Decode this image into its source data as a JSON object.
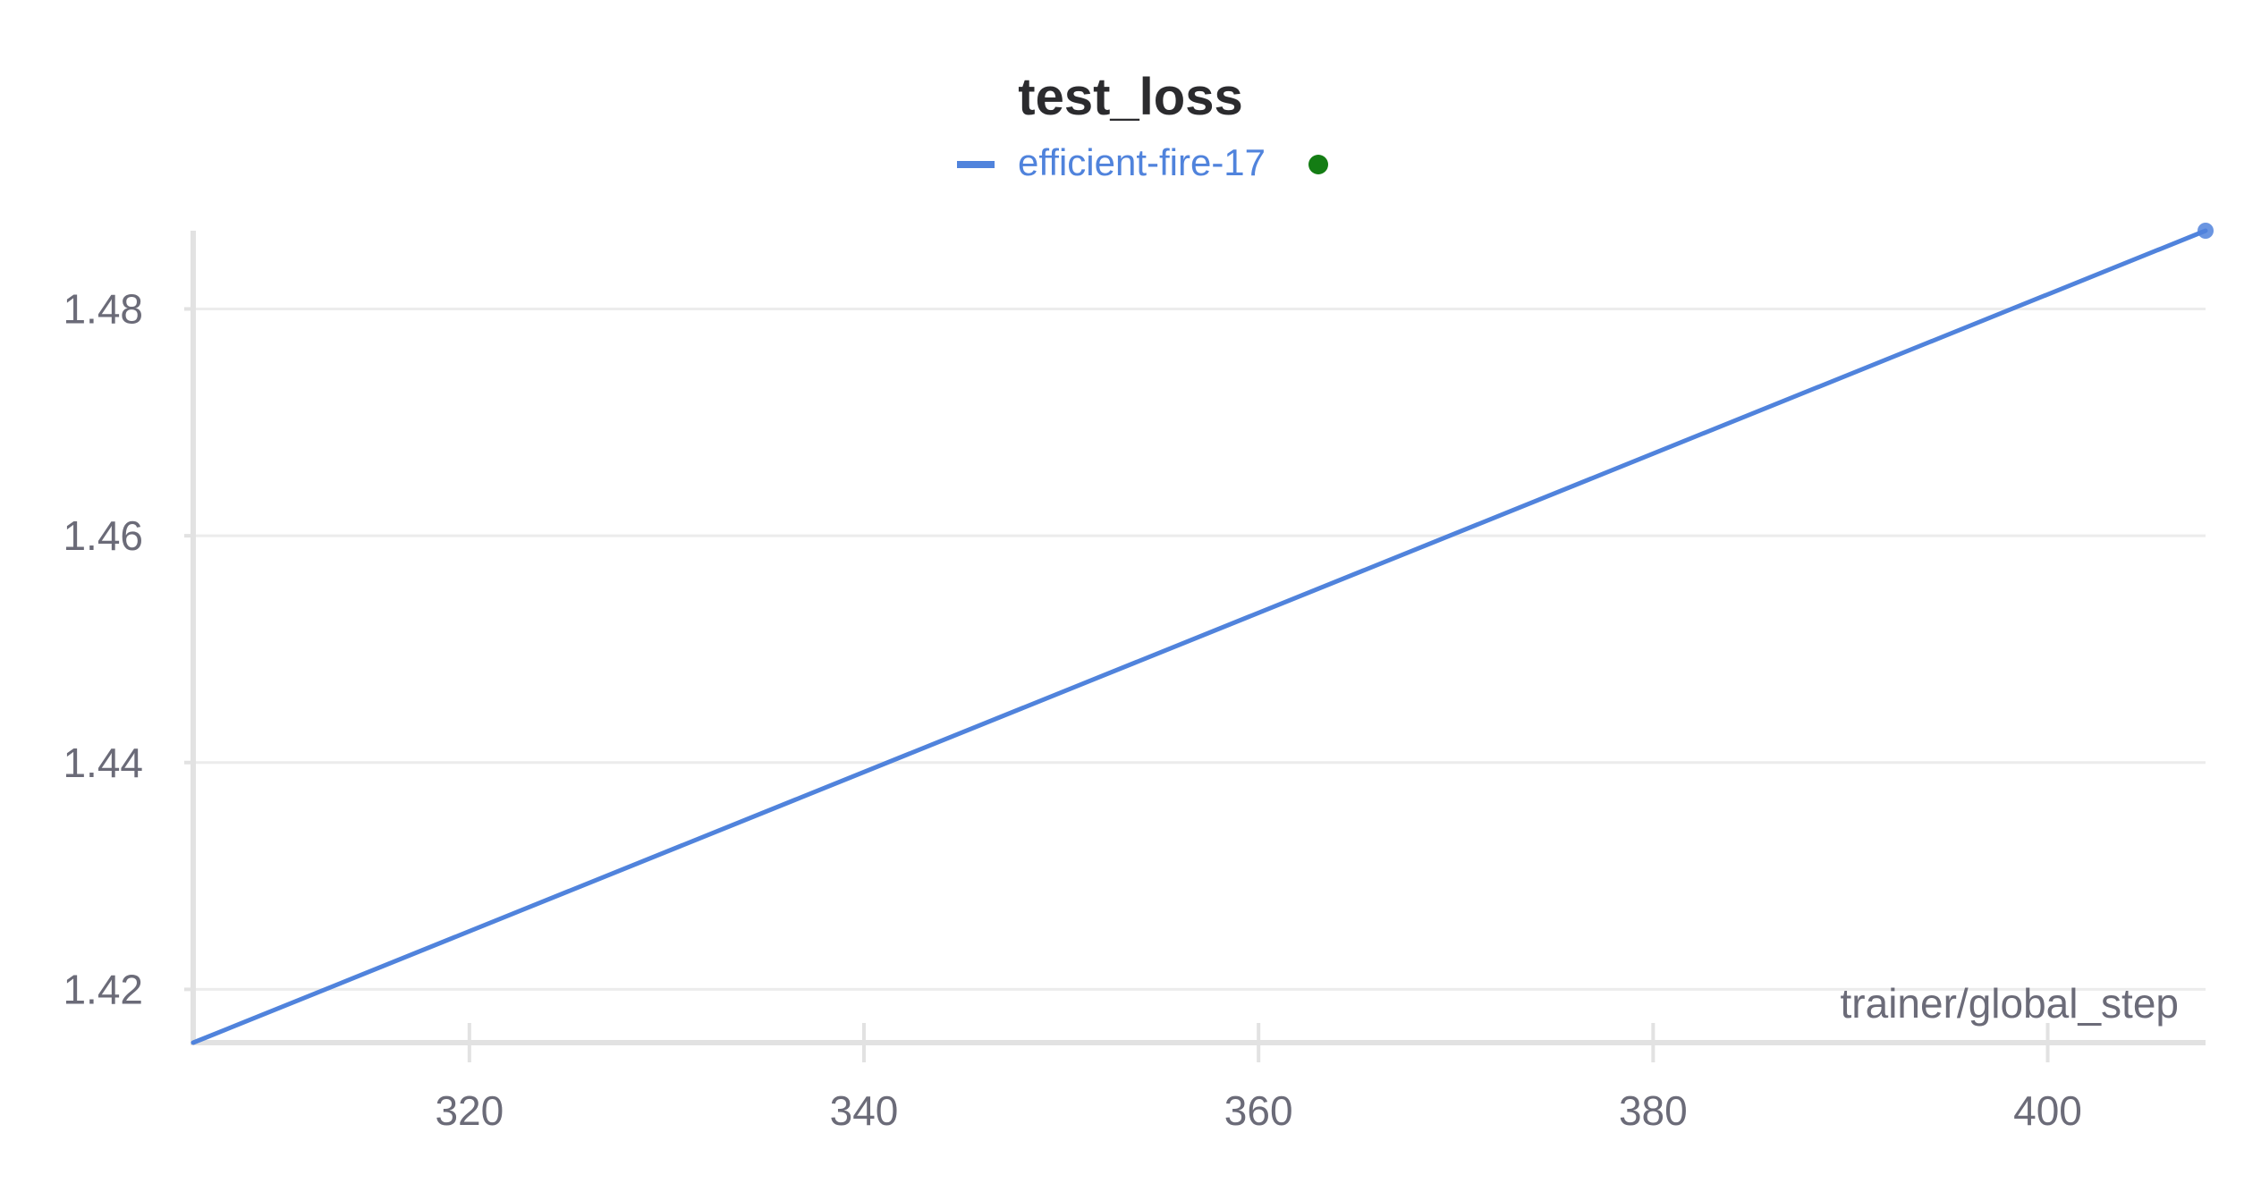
{
  "chart_data": {
    "type": "line",
    "title": "test_loss",
    "xlabel": "trainer/global_step",
    "ylabel": "",
    "xlim": [
      306,
      408
    ],
    "ylim": [
      1.4153,
      1.4869
    ],
    "x_ticks": [
      320,
      340,
      360,
      380,
      400
    ],
    "y_ticks": [
      1.42,
      1.44,
      1.46,
      1.48
    ],
    "grid": true,
    "legend_position": "top-center",
    "series": [
      {
        "name": "efficient-fire-17",
        "color": "#5083dc",
        "status_color": "#147d14",
        "x": [
          306,
          408
        ],
        "y": [
          1.4153,
          1.4869
        ]
      }
    ]
  }
}
